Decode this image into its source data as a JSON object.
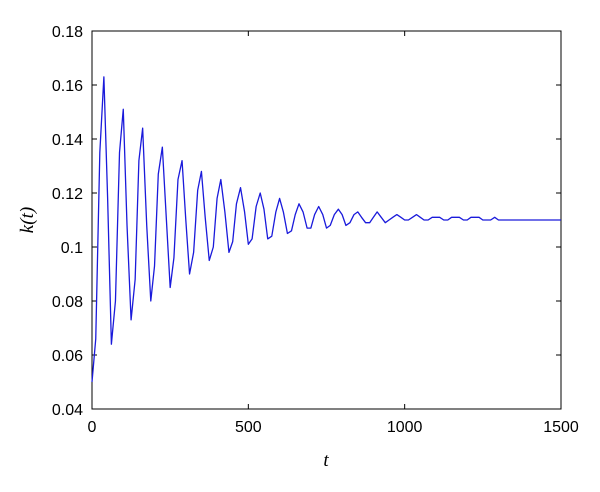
{
  "chart_data": {
    "type": "line",
    "title": "",
    "xlabel": "t",
    "ylabel": "k(t)",
    "xlim": [
      0,
      1500
    ],
    "ylim": [
      0.04,
      0.18
    ],
    "xticks": [
      0,
      500,
      1000,
      1500
    ],
    "xtick_labels": [
      "0",
      "500",
      "1000",
      "1500"
    ],
    "yticks": [
      0.04,
      0.06,
      0.08,
      0.1,
      0.12,
      0.14,
      0.16,
      0.18
    ],
    "ytick_labels": [
      "0.04",
      "0.06",
      "0.08",
      "0.1",
      "0.12",
      "0.14",
      "0.16",
      "0.18"
    ],
    "grid": false,
    "legend": "none",
    "line_color": "#1a1adb",
    "series": [
      {
        "x": [
          0,
          12,
          25,
          38,
          50,
          62,
          75,
          88,
          100,
          112,
          125,
          138,
          150,
          162,
          175,
          188,
          200,
          212,
          225,
          238,
          250,
          262,
          275,
          288,
          300,
          312,
          325,
          338,
          350,
          362,
          375,
          388,
          400,
          412,
          425,
          438,
          450,
          462,
          475,
          488,
          500,
          512,
          525,
          538,
          550,
          562,
          575,
          588,
          600,
          612,
          625,
          638,
          650,
          662,
          675,
          688,
          700,
          712,
          725,
          738,
          750,
          762,
          775,
          788,
          800,
          812,
          825,
          838,
          850,
          862,
          875,
          888,
          900,
          912,
          925,
          938,
          950,
          962,
          975,
          988,
          1000,
          1012,
          1025,
          1038,
          1050,
          1062,
          1075,
          1088,
          1100,
          1112,
          1125,
          1138,
          1150,
          1162,
          1175,
          1188,
          1200,
          1212,
          1225,
          1238,
          1250,
          1262,
          1275,
          1288,
          1300,
          1312,
          1325,
          1338,
          1350,
          1362,
          1375,
          1388,
          1400,
          1412,
          1425,
          1438,
          1450,
          1462,
          1475,
          1488,
          1500
        ],
        "values": [
          0.05,
          0.066,
          0.135,
          0.163,
          0.118,
          0.064,
          0.08,
          0.135,
          0.151,
          0.108,
          0.073,
          0.088,
          0.132,
          0.144,
          0.108,
          0.08,
          0.093,
          0.127,
          0.137,
          0.11,
          0.085,
          0.096,
          0.125,
          0.132,
          0.11,
          0.09,
          0.098,
          0.121,
          0.128,
          0.111,
          0.095,
          0.1,
          0.118,
          0.125,
          0.113,
          0.098,
          0.102,
          0.116,
          0.122,
          0.113,
          0.101,
          0.103,
          0.115,
          0.12,
          0.114,
          0.103,
          0.104,
          0.113,
          0.118,
          0.113,
          0.105,
          0.106,
          0.112,
          0.116,
          0.113,
          0.107,
          0.107,
          0.112,
          0.115,
          0.112,
          0.107,
          0.108,
          0.112,
          0.114,
          0.112,
          0.108,
          0.109,
          0.112,
          0.113,
          0.111,
          0.109,
          0.109,
          0.111,
          0.113,
          0.111,
          0.109,
          0.11,
          0.111,
          0.112,
          0.111,
          0.11,
          0.11,
          0.111,
          0.112,
          0.111,
          0.11,
          0.11,
          0.111,
          0.111,
          0.111,
          0.11,
          0.11,
          0.111,
          0.111,
          0.111,
          0.11,
          0.11,
          0.111,
          0.111,
          0.111,
          0.11,
          0.11,
          0.11,
          0.111,
          0.11,
          0.11,
          0.11,
          0.11,
          0.11,
          0.11,
          0.11,
          0.11,
          0.11,
          0.11,
          0.11,
          0.11,
          0.11,
          0.11,
          0.11,
          0.11,
          0.11
        ]
      }
    ]
  }
}
